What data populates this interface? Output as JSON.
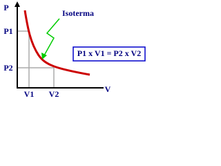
{
  "axes": {
    "y_label": "P",
    "x_label": "V"
  },
  "ticks": {
    "p1": "P1",
    "p2": "P2",
    "v1": "V1",
    "v2": "V2"
  },
  "curve_label": "Isoterma",
  "formula": "P1 x V1 = P2 x V2"
}
